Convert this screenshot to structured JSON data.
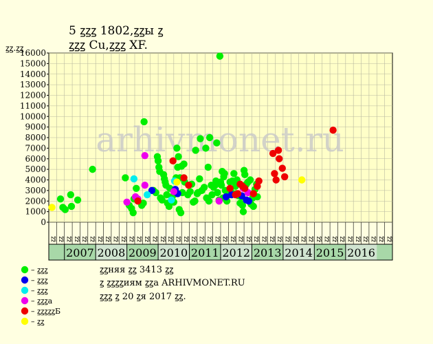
{
  "chart_data": {
    "type": "scatter",
    "title_line1": "5 ꙁꙁꙁ 1802,ꙁꙁы ꙁ",
    "title_line2": "ꙁꙁꙁ Cu,ꙁꙁꙁ XF.",
    "ylabel": "ꙁꙁ.ꙁꙁ",
    "ylim": [
      0,
      16000
    ],
    "yticks": [
      0,
      1000,
      2000,
      3000,
      4000,
      5000,
      6000,
      7000,
      8000,
      9000,
      10000,
      11000,
      12000,
      13000,
      14000,
      15000,
      16000
    ],
    "quarter_labels": [
      "ꙁꙁ",
      "ꙁꙁ",
      "ꙁꙁ",
      "ꙁꙁ"
    ],
    "years": [
      "2007",
      "2008",
      "2009",
      "2010",
      "2011",
      "2012",
      "2013",
      "2014",
      "2015",
      "2016"
    ],
    "watermark": "arhivmonet.ru",
    "grid": true,
    "legend_position": "bottom-left",
    "series": [
      {
        "name": "– ꙁꙁꙁ",
        "color": "#00EE00",
        "points": [
          [
            1,
            2200
          ],
          [
            1.3,
            1400
          ],
          [
            1.6,
            1200
          ],
          [
            2.3,
            2600
          ],
          [
            2.4,
            1500
          ],
          [
            3.2,
            2100
          ],
          [
            5.1,
            5000
          ],
          [
            9.3,
            4200
          ],
          [
            9.8,
            1600
          ],
          [
            10.1,
            1300
          ],
          [
            10.3,
            900
          ],
          [
            10.4,
            2200
          ],
          [
            10.7,
            3200
          ],
          [
            11.4,
            1600
          ],
          [
            11.6,
            1800
          ],
          [
            11.7,
            9500
          ],
          [
            12.9,
            3000
          ],
          [
            13.2,
            2800
          ],
          [
            13.4,
            6200
          ],
          [
            13.5,
            5800
          ],
          [
            13.6,
            5200
          ],
          [
            13.7,
            4800
          ],
          [
            13.8,
            2300
          ],
          [
            14.0,
            2100
          ],
          [
            14.2,
            4500
          ],
          [
            14.3,
            4100
          ],
          [
            14.4,
            3800
          ],
          [
            14.5,
            3500
          ],
          [
            14.6,
            2600
          ],
          [
            14.7,
            1800
          ],
          [
            14.9,
            1500
          ],
          [
            15.0,
            3200
          ],
          [
            15.2,
            2000
          ],
          [
            15.3,
            2400
          ],
          [
            15.5,
            1900
          ],
          [
            15.7,
            2700
          ],
          [
            15.8,
            4200
          ],
          [
            15.9,
            7000
          ],
          [
            16.0,
            5200
          ],
          [
            16.1,
            6200
          ],
          [
            16.2,
            1200
          ],
          [
            16.3,
            4200
          ],
          [
            16.4,
            900
          ],
          [
            16.5,
            5300
          ],
          [
            16.6,
            2800
          ],
          [
            16.8,
            5500
          ],
          [
            16.9,
            3800
          ],
          [
            17.3,
            2600
          ],
          [
            17.6,
            2900
          ],
          [
            17.8,
            3600
          ],
          [
            18.0,
            1900
          ],
          [
            18.2,
            2000
          ],
          [
            18.3,
            6800
          ],
          [
            18.5,
            2700
          ],
          [
            18.6,
            2800
          ],
          [
            18.8,
            4100
          ],
          [
            18.9,
            7900
          ],
          [
            19.1,
            3000
          ],
          [
            19.4,
            3300
          ],
          [
            19.6,
            7000
          ],
          [
            19.7,
            2300
          ],
          [
            19.9,
            5200
          ],
          [
            20.0,
            2000
          ],
          [
            20.1,
            8000
          ],
          [
            20.3,
            3500
          ],
          [
            20.4,
            2600
          ],
          [
            20.6,
            3300
          ],
          [
            20.8,
            3500
          ],
          [
            20.9,
            3900
          ],
          [
            21.0,
            7500
          ],
          [
            21.1,
            2800
          ],
          [
            21.3,
            2100
          ],
          [
            21.4,
            15700
          ],
          [
            21.5,
            3800
          ],
          [
            21.6,
            3500
          ],
          [
            21.7,
            4800
          ],
          [
            21.8,
            2300
          ],
          [
            21.9,
            4300
          ],
          [
            22.0,
            4600
          ],
          [
            22.1,
            3000
          ],
          [
            22.3,
            2000
          ],
          [
            22.5,
            2600
          ],
          [
            22.7,
            3800
          ],
          [
            22.8,
            2900
          ],
          [
            23.0,
            3900
          ],
          [
            23.2,
            4600
          ],
          [
            23.4,
            3400
          ],
          [
            23.5,
            2700
          ],
          [
            23.6,
            4000
          ],
          [
            23.8,
            2500
          ],
          [
            24.0,
            1800
          ],
          [
            24.2,
            2400
          ],
          [
            24.3,
            1600
          ],
          [
            24.4,
            1000
          ],
          [
            24.5,
            4900
          ],
          [
            24.6,
            4500
          ],
          [
            24.8,
            3600
          ],
          [
            25.0,
            3800
          ],
          [
            25.1,
            2000
          ],
          [
            25.3,
            4000
          ],
          [
            25.4,
            1700
          ],
          [
            25.6,
            2300
          ],
          [
            25.7,
            1500
          ],
          [
            25.9,
            3100
          ],
          [
            26.1,
            3600
          ],
          [
            26.2,
            2400
          ]
        ]
      },
      {
        "name": "– ꙁꙁꙁ",
        "color": "#0000EE",
        "points": [
          [
            12.7,
            3000
          ],
          [
            15.7,
            3100
          ],
          [
            16.0,
            2700
          ],
          [
            22.2,
            2400
          ],
          [
            22.9,
            2600
          ],
          [
            24.2,
            2500
          ],
          [
            24.8,
            2100
          ],
          [
            25.1,
            2000
          ]
        ]
      },
      {
        "name": "– ꙁꙁꙁ",
        "color": "#00EEEE",
        "points": [
          [
            10.4,
            4100
          ],
          [
            12.1,
            2600
          ],
          [
            15.2,
            2100
          ],
          [
            15.6,
            3900
          ]
        ]
      },
      {
        "name": "– ꙁꙁꙁa",
        "color": "#EE00EE",
        "points": [
          [
            9.5,
            1900
          ],
          [
            10.6,
            2400
          ],
          [
            10.9,
            2200
          ],
          [
            11.8,
            6300
          ],
          [
            11.8,
            3500
          ],
          [
            15.5,
            2900
          ],
          [
            21.3,
            2000
          ],
          [
            24.4,
            3200
          ],
          [
            25.0,
            2800
          ]
        ]
      },
      {
        "name": "– ꙁꙁꙁꙁꙁБ",
        "color": "#EE0000",
        "points": [
          [
            10.9,
            2000
          ],
          [
            15.4,
            5800
          ],
          [
            16.8,
            4200
          ],
          [
            17.4,
            3500
          ],
          [
            22.7,
            3200
          ],
          [
            23.4,
            2600
          ],
          [
            23.7,
            2700
          ],
          [
            24.0,
            3600
          ],
          [
            24.3,
            3400
          ],
          [
            24.6,
            3200
          ],
          [
            25.7,
            2700
          ],
          [
            26.2,
            3400
          ],
          [
            26.4,
            3900
          ],
          [
            28.2,
            6500
          ],
          [
            28.4,
            4600
          ],
          [
            28.6,
            4000
          ],
          [
            28.9,
            6800
          ],
          [
            29.0,
            6000
          ],
          [
            29.4,
            5100
          ],
          [
            29.7,
            4300
          ],
          [
            35.9,
            8700
          ]
        ]
      },
      {
        "name": "– ꙁꙁ",
        "color": "#FFFF00",
        "points": [
          [
            -0.1,
            1400
          ],
          [
            15.9,
            3800
          ],
          [
            31.9,
            4000
          ]
        ]
      }
    ]
  },
  "info": {
    "line1": "ꙁꙁняя ꙁꙁ 3413 ꙁꙁ",
    "line2": "ꙁ ꙁꙁꙁꙁиям ꙁꙁa ARHIVMONET.RU",
    "line3": "ꙁꙁꙁ ꙁ 20 ꙁя 2017 ꙁꙁ."
  },
  "colors": {
    "background": "#FFFFE1",
    "plot": "#FFFFC8",
    "year_bg_a": "#A8D8A8",
    "year_bg_b": "#D0E4D0",
    "watermark": "#C8C8C8"
  }
}
